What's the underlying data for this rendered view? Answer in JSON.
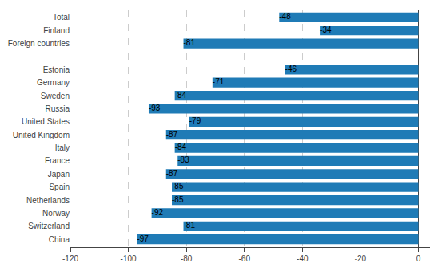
{
  "chart_data": {
    "type": "bar",
    "orientation": "horizontal",
    "categories": [
      "China",
      "Switzerland",
      "Norway",
      "Netherlands",
      "Spain",
      "Japan",
      "France",
      "Italy",
      "United Kingdom",
      "United States",
      "Russia",
      "Sweden",
      "Germany",
      "Estonia",
      null,
      "Foreign countries",
      "Finland",
      "Total"
    ],
    "values": [
      -97,
      -81,
      -92,
      -85,
      -85,
      -87,
      -83,
      -84,
      -87,
      -79,
      -93,
      -84,
      -71,
      -46,
      null,
      -81,
      -34,
      -48
    ],
    "color": "#1f7bb6",
    "xlim": [
      -120,
      4
    ],
    "xticks": [
      -120,
      -100,
      -80,
      -60,
      -40,
      -20,
      0
    ],
    "grid": true,
    "data_labels": true
  }
}
